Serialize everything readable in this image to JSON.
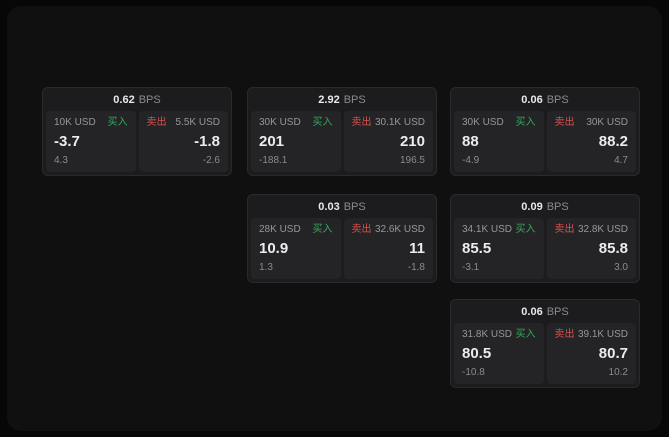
{
  "labels": {
    "buy": "买入",
    "sell": "卖出",
    "bps": "BPS"
  },
  "cards": [
    {
      "bps": "0.62",
      "buy": {
        "amount": "10K USD",
        "price": "-3.7",
        "delta": "4.3"
      },
      "sell": {
        "amount": "5.5K USD",
        "price": "-1.8",
        "delta": "-2.6"
      }
    },
    {
      "bps": "2.92",
      "buy": {
        "amount": "30K USD",
        "price": "201",
        "delta": "-188.1"
      },
      "sell": {
        "amount": "30.1K USD",
        "price": "210",
        "delta": "196.5"
      }
    },
    {
      "bps": "0.06",
      "buy": {
        "amount": "30K USD",
        "price": "88",
        "delta": "-4.9"
      },
      "sell": {
        "amount": "30K USD",
        "price": "88.2",
        "delta": "4.7"
      }
    },
    {
      "bps": "0.03",
      "buy": {
        "amount": "28K USD",
        "price": "10.9",
        "delta": "1.3"
      },
      "sell": {
        "amount": "32.6K USD",
        "price": "11",
        "delta": "-1.8"
      }
    },
    {
      "bps": "0.09",
      "buy": {
        "amount": "34.1K USD",
        "price": "85.5",
        "delta": "-3.1"
      },
      "sell": {
        "amount": "32.8K USD",
        "price": "85.8",
        "delta": "3.0"
      }
    },
    {
      "bps": "0.06",
      "buy": {
        "amount": "31.8K USD",
        "price": "80.5",
        "delta": "-10.8"
      },
      "sell": {
        "amount": "39.1K USD",
        "price": "80.7",
        "delta": "10.2"
      }
    }
  ]
}
